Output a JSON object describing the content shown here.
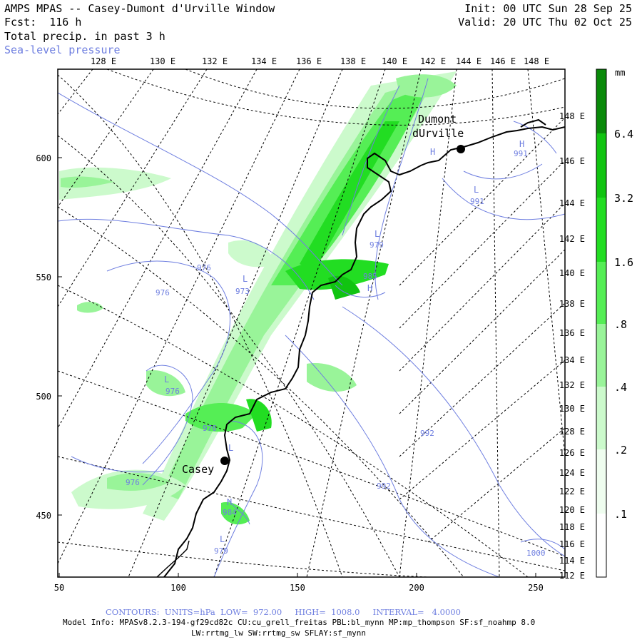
{
  "header": {
    "title": "AMPS MPAS -- Casey-Dumont d'Urville Window",
    "forecast": "Fcst:  116 h",
    "field": "Total precip. in past 3 h",
    "overlay": "Sea-level pressure",
    "init": "Init: 00 UTC Sun 28 Sep 25",
    "valid": "Valid: 20 UTC Thu 02 Oct 25"
  },
  "map": {
    "top_longitude_labels": [
      "128 E",
      "130 E",
      "132 E",
      "134 E",
      "136 E",
      "138 E",
      "140 E",
      "142 E",
      "144 E",
      "146 E",
      "148 E"
    ],
    "right_longitude_labels": [
      "148 E",
      "146 E",
      "144 E",
      "142 E",
      "140 E",
      "138 E",
      "136 E",
      "134 E",
      "132 E",
      "130 E",
      "128 E",
      "126 E",
      "124 E",
      "122 E",
      "120 E",
      "118 E",
      "116 E",
      "114 E",
      "112 E"
    ],
    "x_ticks": [
      "50",
      "100",
      "150",
      "200",
      "250"
    ],
    "y_ticks": [
      "600",
      "550",
      "500",
      "450"
    ],
    "stations": [
      {
        "name_line1": "Dumont",
        "name_line2": "dUrville"
      },
      {
        "name_line1": "Casey"
      }
    ],
    "pressure_labels": [
      "976",
      "976",
      "973",
      "976",
      "976",
      "976",
      "979",
      "984",
      "979",
      "985",
      "992",
      "992",
      "991",
      "991",
      "1000"
    ],
    "pressure_centers": [
      "H",
      "H",
      "L",
      "L",
      "L",
      "L",
      "H",
      "L",
      "L",
      "H"
    ],
    "colors": {
      "contour": "#6f7fe0",
      "coast": "#000000",
      "grid": "#000000"
    }
  },
  "colorbar": {
    "unit": "mm",
    "labels": [
      "6.4",
      "3.2",
      "1.6",
      ".8",
      ".4",
      ".2",
      ".1"
    ],
    "colors": [
      "#0a8a0a",
      "#11c411",
      "#22dd22",
      "#55ee55",
      "#99f499",
      "#ccfacc",
      "#effdef"
    ]
  },
  "footer": {
    "contours": "CONTOURS:  UNITS=hPa  LOW=  972.00     HIGH=  1008.0     INTERVAL=   4.0000",
    "model_info": "Model Info: MPASv8.2.3-194-gf29cd82c CU:cu_grell_freitas PBL:bl_mynn MP:mp_thompson SF:sf_noahmp 8.0",
    "physics": "LW:rrtmg_lw SW:rrtmg_sw SFLAY:sf_mynn"
  }
}
